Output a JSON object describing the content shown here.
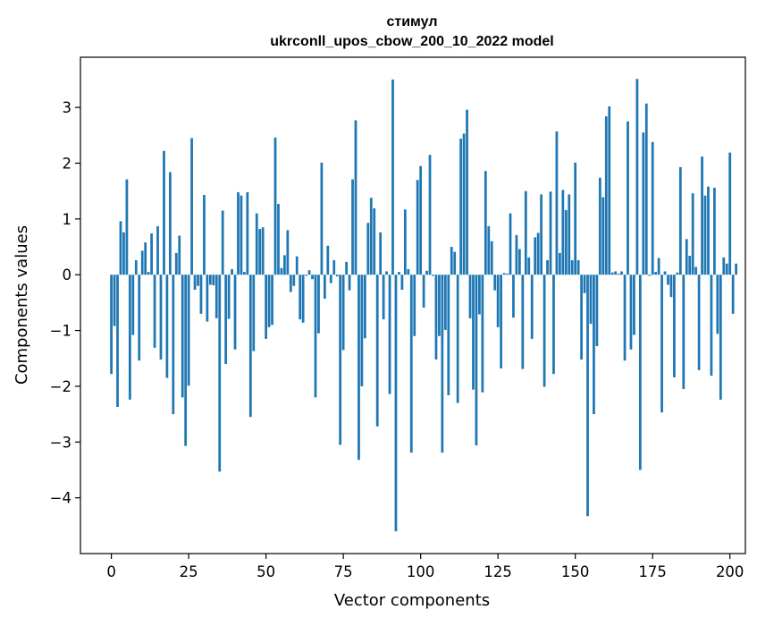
{
  "chart_data": {
    "type": "bar",
    "title": "стимул",
    "subtitle": "ukrconll_upos_cbow_200_10_2022 model",
    "xlabel": "Vector components",
    "ylabel": "Components values",
    "xlim": [
      -10,
      205
    ],
    "ylim": [
      -5.0,
      3.9
    ],
    "xticks": [
      0,
      25,
      50,
      75,
      100,
      125,
      150,
      175,
      200
    ],
    "yticks": [
      -4,
      -3,
      -2,
      -1,
      0,
      1,
      2,
      3
    ],
    "ytick_labels": [
      "−4",
      "−3",
      "−2",
      "−1",
      "0",
      "1",
      "2",
      "3"
    ],
    "grid": false,
    "bar_color": "#1f77b4",
    "values": [
      -1.78,
      -0.92,
      -2.37,
      0.96,
      0.76,
      1.71,
      -2.24,
      -1.08,
      0.26,
      -1.54,
      0.43,
      0.58,
      0.05,
      0.74,
      -1.31,
      0.87,
      -1.52,
      2.22,
      -1.85,
      1.84,
      -2.5,
      0.39,
      0.7,
      -2.2,
      -3.07,
      -1.99,
      2.45,
      -0.27,
      -0.2,
      -0.7,
      1.43,
      -0.84,
      -0.18,
      -0.19,
      -0.78,
      -3.53,
      1.15,
      -1.6,
      -0.79,
      0.1,
      -1.34,
      1.48,
      1.42,
      0.05,
      1.48,
      -2.55,
      -1.37,
      1.1,
      0.82,
      0.85,
      -1.15,
      -0.94,
      -0.9,
      2.46,
      1.27,
      0.12,
      0.35,
      0.8,
      -0.31,
      -0.2,
      0.33,
      -0.8,
      -0.86,
      -0.02,
      0.08,
      -0.08,
      -2.2,
      -1.05,
      2.01,
      -0.43,
      0.52,
      -0.15,
      0.26,
      -0.03,
      -3.05,
      -1.35,
      0.23,
      -0.28,
      1.71,
      2.77,
      -3.32,
      -2.0,
      -1.14,
      0.93,
      1.38,
      1.19,
      -2.72,
      0.76,
      -0.8,
      0.06,
      -2.14,
      3.5,
      -4.6,
      0.05,
      -0.27,
      1.17,
      0.1,
      -3.19,
      -1.1,
      1.7,
      1.95,
      -0.59,
      0.07,
      2.15,
      -0.02,
      -1.52,
      -1.1,
      -3.19,
      -0.99,
      -2.16,
      0.5,
      0.41,
      -2.3,
      2.44,
      2.53,
      2.96,
      -0.78,
      -2.06,
      -3.06,
      -0.71,
      -2.11,
      1.86,
      0.87,
      0.6,
      -0.28,
      -0.94,
      -1.68,
      0.03,
      0.02,
      1.1,
      -0.77,
      0.71,
      0.46,
      -1.69,
      1.5,
      0.31,
      -1.15,
      0.67,
      0.75,
      1.44,
      -2.01,
      0.26,
      1.49,
      -1.78,
      2.57,
      0.39,
      1.52,
      1.16,
      1.44,
      0.26,
      2.01,
      0.26,
      -1.52,
      -0.33,
      -4.33,
      -0.88,
      -2.5,
      -1.28,
      1.74,
      1.39,
      2.84,
      3.02,
      0.04,
      0.06,
      0.02,
      0.06,
      -1.54,
      2.75,
      -1.34,
      -1.08,
      3.51,
      -3.5,
      2.55,
      3.07,
      -0.02,
      2.38,
      0.05,
      0.3,
      -2.47,
      0.06,
      -0.18,
      -0.4,
      -1.84,
      0.04,
      1.93,
      -2.05,
      0.64,
      0.34,
      1.46,
      0.14,
      -1.71,
      2.12,
      1.42,
      1.58,
      -1.81,
      1.56,
      -1.06,
      -2.24,
      0.31,
      0.2,
      2.19,
      -0.7,
      0.2
    ]
  }
}
